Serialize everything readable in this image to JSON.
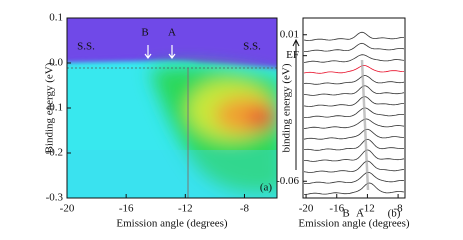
{
  "chart_data": [
    {
      "type": "heatmap",
      "xlabel": "Emission angle (degrees)",
      "ylabel": "Binding energy (eV)",
      "xlim": [
        -20,
        -5.8
      ],
      "xticks": [
        -20,
        -16,
        -12,
        -8
      ],
      "ylim": [
        -0.3,
        0.1
      ],
      "yticks": [
        0.1,
        {
          "value": 0,
          "label": "0.0"
        },
        -0.1,
        -0.2,
        -0.3
      ],
      "annotations": [
        "S.S.",
        "S.S.",
        "B",
        "A",
        "(a)"
      ]
    },
    {
      "type": "line",
      "xlabel": "Emission angle (degrees)",
      "ylabel": "binding energy (eV)",
      "xlim": [
        -20.4,
        -7.1
      ],
      "xticks": [
        -20,
        -16,
        -12,
        -8
      ],
      "ylim": [
        -0.068,
        0.018
      ],
      "yticks": [
        0.01,
        {
          "value": 0,
          "label": "EF"
        },
        -0.06
      ],
      "tick_color": "#e8102a",
      "annotations": [
        "B",
        "A",
        "(b)"
      ]
    }
  ]
}
